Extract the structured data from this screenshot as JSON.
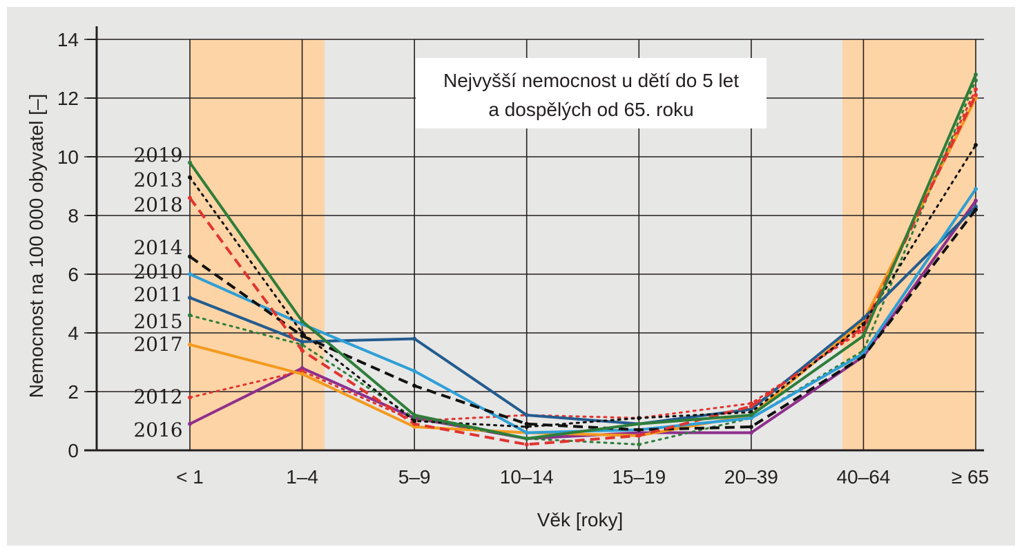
{
  "chart_data": {
    "type": "line",
    "title": "",
    "xlabel": "Věk [roky]",
    "ylabel": "Nemocnost na 100 000 obyvatel [–]",
    "ylim": [
      0,
      14
    ],
    "yticks": [
      0,
      2,
      4,
      6,
      8,
      10,
      12,
      14
    ],
    "grid": true,
    "categories": [
      "< 1",
      "1–4",
      "5–9",
      "10–14",
      "15–19",
      "20–39",
      "40–64",
      "≥ 65"
    ],
    "highlight_bands": [
      {
        "from_category": "< 1",
        "to_category": "1–4",
        "color": "#fdd4a6"
      },
      {
        "from_category": "40–64",
        "to_category": "≥ 65",
        "color": "#fdd4a6"
      }
    ],
    "annotation": {
      "lines": [
        "Nejvyšší nemocnost u dětí do 5 let",
        "a dospělých od 65. roku"
      ]
    },
    "series": [
      {
        "name": "2019",
        "color": "#2e7d3a",
        "style": "solid",
        "width": 4,
        "values": [
          9.8,
          4.4,
          1.2,
          0.4,
          0.9,
          1.2,
          3.9,
          12.8
        ]
      },
      {
        "name": "2013",
        "color": "#111111",
        "style": "dotted",
        "width": 3,
        "values": [
          9.3,
          4.0,
          1.0,
          0.8,
          1.1,
          1.3,
          4.3,
          10.4
        ]
      },
      {
        "name": "2018",
        "color": "#e0342f",
        "style": "dashed",
        "width": 4,
        "values": [
          8.6,
          3.4,
          0.9,
          0.2,
          0.5,
          1.5,
          4.2,
          12.1
        ]
      },
      {
        "name": "2014",
        "color": "#111111",
        "style": "dashed",
        "width": 4,
        "values": [
          6.6,
          3.9,
          2.2,
          0.9,
          0.7,
          0.8,
          3.2,
          8.2
        ]
      },
      {
        "name": "2010",
        "color": "#2e9fd6",
        "style": "solid",
        "width": 4,
        "values": [
          6.0,
          4.3,
          2.7,
          0.6,
          0.7,
          1.1,
          3.3,
          8.9
        ]
      },
      {
        "name": "2011",
        "color": "#235c8e",
        "style": "solid",
        "width": 4,
        "values": [
          5.2,
          3.7,
          3.8,
          1.2,
          0.9,
          1.4,
          4.5,
          8.3
        ]
      },
      {
        "name": "2015",
        "color": "#2e7d3a",
        "style": "dotted",
        "width": 3,
        "values": [
          4.6,
          3.6,
          1.1,
          0.4,
          0.2,
          1.1,
          3.4,
          12.6
        ]
      },
      {
        "name": "2017",
        "color": "#f39a1e",
        "style": "solid",
        "width": 4,
        "values": [
          3.6,
          2.6,
          0.8,
          0.6,
          0.5,
          1.2,
          4.4,
          12.0
        ]
      },
      {
        "name": "2012",
        "color": "#e0342f",
        "style": "dotted",
        "width": 3,
        "values": [
          1.8,
          2.7,
          1.0,
          1.2,
          1.1,
          1.6,
          4.1,
          12.3
        ]
      },
      {
        "name": "2016",
        "color": "#8e2f8c",
        "style": "solid",
        "width": 4,
        "values": [
          0.9,
          2.8,
          1.1,
          0.4,
          0.6,
          0.6,
          3.2,
          8.5
        ]
      }
    ]
  }
}
